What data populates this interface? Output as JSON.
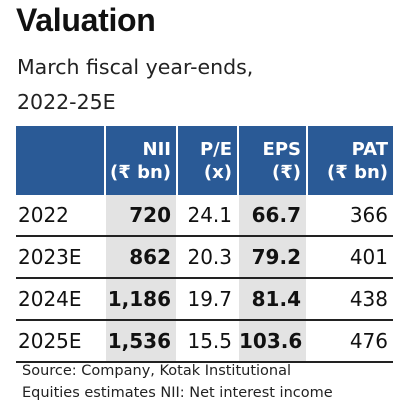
{
  "title": "Valuation",
  "subtitle_line1": "March fiscal year-ends,",
  "subtitle_line2": "2022-25E",
  "columns": [
    {
      "name": "NII",
      "unit": "(₹ bn)"
    },
    {
      "name": "P/E",
      "unit": "(x)"
    },
    {
      "name": "EPS",
      "unit": "(₹)"
    },
    {
      "name": "PAT",
      "unit": "(₹ bn)"
    }
  ],
  "rows": [
    {
      "year": "2022",
      "nii": "720",
      "pe": "24.1",
      "eps": "66.7",
      "pat": "366"
    },
    {
      "year": "2023E",
      "nii": "862",
      "pe": "20.3",
      "eps": "79.2",
      "pat": "401"
    },
    {
      "year": "2024E",
      "nii": "1,186",
      "pe": "19.7",
      "eps": "81.4",
      "pat": "438"
    },
    {
      "year": "2025E",
      "nii": "1,536",
      "pe": "15.5",
      "eps": "103.6",
      "pat": "476"
    }
  ],
  "source_line1": "Source: Company, Kotak Institutional",
  "source_line2": "Equities estimates NII: Net interest income",
  "colors": {
    "header_bg": "#2a5a96",
    "shade_bg": "#e3e3e3"
  }
}
